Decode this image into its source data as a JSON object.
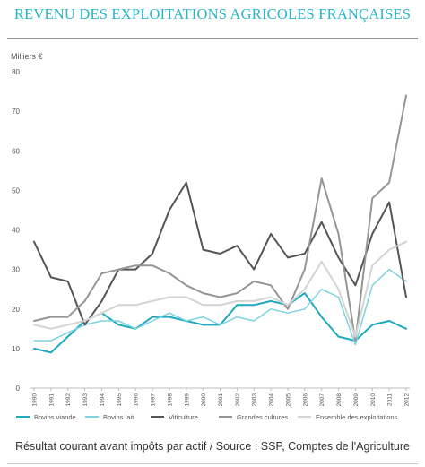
{
  "chart_data": {
    "type": "line",
    "title": "REVENU DES EXPLOITATIONS AGRICOLES FRANÇAISES",
    "ylabel": "Milliers €",
    "xlabel": "",
    "ylim": [
      0,
      80
    ],
    "yticks": [
      0,
      10,
      20,
      30,
      40,
      50,
      60,
      70,
      80
    ],
    "grid": false,
    "legend_position": "bottom",
    "x": [
      "1990",
      "1991",
      "1992",
      "1993",
      "1994",
      "1995",
      "1996",
      "1997",
      "1998",
      "1999",
      "2000",
      "2001",
      "2002",
      "2003",
      "2004",
      "2005",
      "2006",
      "2007",
      "2008",
      "2009",
      "2010",
      "2011",
      "2012"
    ],
    "series": [
      {
        "name": "Bovins viande",
        "color": "#1fa9bf",
        "width": 2,
        "values": [
          10,
          9,
          13,
          17,
          19,
          16,
          15,
          18,
          18,
          17,
          16,
          16,
          21,
          21,
          22,
          21,
          24,
          18,
          13,
          12,
          16,
          17,
          15
        ]
      },
      {
        "name": "Bovins lait",
        "color": "#7dd3e0",
        "width": 1.5,
        "values": [
          12,
          12,
          14,
          16,
          17,
          17,
          15,
          17,
          19,
          17,
          18,
          16,
          18,
          17,
          20,
          19,
          20,
          25,
          23,
          11,
          26,
          30,
          27
        ]
      },
      {
        "name": "Viticulture",
        "color": "#555555",
        "width": 2,
        "values": [
          37,
          28,
          27,
          16,
          22,
          30,
          30,
          34,
          45,
          52,
          35,
          34,
          36,
          30,
          39,
          33,
          34,
          42,
          33,
          26,
          39,
          47,
          23
        ]
      },
      {
        "name": "Grandes cultures",
        "color": "#959595",
        "width": 2,
        "values": [
          17,
          18,
          18,
          22,
          29,
          30,
          31,
          31,
          29,
          26,
          24,
          23,
          24,
          27,
          26,
          20,
          30,
          53,
          39,
          12,
          48,
          52,
          74
        ]
      },
      {
        "name": "Ensemble des exploitations",
        "color": "#d4d4d4",
        "width": 2,
        "values": [
          16,
          15,
          16,
          17,
          19,
          21,
          21,
          22,
          23,
          23,
          21,
          21,
          22,
          22,
          23,
          21,
          25,
          32,
          25,
          13,
          31,
          35,
          37
        ]
      }
    ]
  },
  "caption": "Résultat courant avant impôts par actif / Source : SSP, Comptes de l'Agriculture"
}
